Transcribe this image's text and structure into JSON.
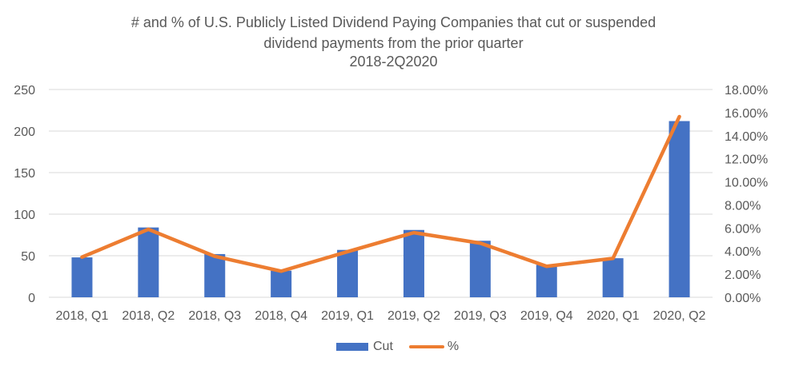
{
  "chart_data": {
    "type": "bar",
    "title": [
      "# and % of U.S. Publicly Listed Dividend Paying Companies that cut or suspended",
      "dividend payments from the prior quarter",
      "2018-2Q2020"
    ],
    "categories": [
      "2018, Q1",
      "2018, Q2",
      "2018, Q3",
      "2018, Q4",
      "2019, Q1",
      "2019, Q2",
      "2019, Q3",
      "2019, Q4",
      "2020, Q1",
      "2020, Q2"
    ],
    "series": [
      {
        "name": "Cut",
        "type": "bar",
        "axis": "left",
        "color": "#4472C4",
        "values": [
          48,
          84,
          52,
          32,
          57,
          81,
          68,
          39,
          47,
          212
        ]
      },
      {
        "name": "%",
        "type": "line",
        "axis": "right",
        "color": "#ED7D31",
        "values": [
          3.48,
          5.89,
          3.55,
          2.26,
          3.95,
          5.6,
          4.69,
          2.68,
          3.37,
          15.65
        ]
      }
    ],
    "left_axis": {
      "label": "",
      "ylim": [
        0,
        250
      ],
      "ticks": [
        0,
        50,
        100,
        150,
        200,
        250
      ],
      "tick_labels": [
        "0",
        "50",
        "100",
        "150",
        "200",
        "250"
      ]
    },
    "right_axis": {
      "label": "",
      "ylim": [
        0,
        18
      ],
      "ticks": [
        0,
        2,
        4,
        6,
        8,
        10,
        12,
        14,
        16,
        18
      ],
      "tick_labels": [
        "0.00%",
        "2.00%",
        "4.00%",
        "6.00%",
        "8.00%",
        "10.00%",
        "12.00%",
        "14.00%",
        "16.00%",
        "18.00%"
      ]
    },
    "xlabel": "",
    "grid": true,
    "legend": {
      "position": "bottom",
      "entries": [
        "Cut",
        "%"
      ]
    }
  },
  "colors": {
    "text": "#595959",
    "grid": "#D9D9D9",
    "bar": "#4472C4",
    "line": "#ED7D31"
  }
}
